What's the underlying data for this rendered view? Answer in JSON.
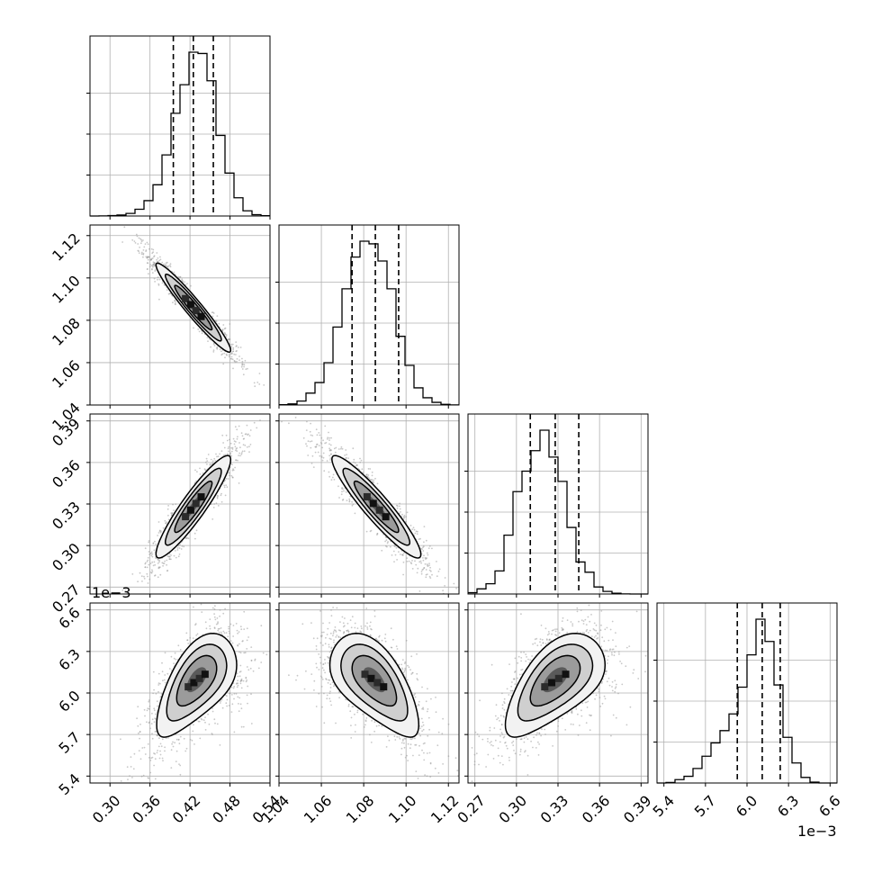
{
  "chart_data": {
    "type": "corner",
    "title": "",
    "parameters": [
      {
        "range": [
          0.27,
          0.54
        ],
        "ticks": [
          "0.30",
          "0.36",
          "0.42",
          "0.48",
          "0.54"
        ],
        "tick_values": [
          0.3,
          0.36,
          0.42,
          0.48,
          0.54
        ],
        "quantiles": [
          0.395,
          0.425,
          0.455
        ],
        "hist_bins": [
          0.27,
          0.54,
          20
        ],
        "hist_counts": [
          0,
          1,
          3,
          8,
          20,
          52,
          118,
          240,
          470,
          790,
          1010,
          1260,
          1250,
          1040,
          620,
          330,
          140,
          40,
          10,
          2
        ]
      },
      {
        "range": [
          1.04,
          1.125
        ],
        "ticks": [
          "1.04",
          "1.06",
          "1.08",
          "1.10",
          "1.12"
        ],
        "tick_values": [
          1.04,
          1.06,
          1.08,
          1.1,
          1.12
        ],
        "quantiles": [
          1.0745,
          1.0855,
          1.0965
        ],
        "hist_bins": [
          1.04,
          1.125,
          20
        ],
        "hist_counts": [
          2,
          8,
          30,
          90,
          170,
          320,
          590,
          880,
          1120,
          1240,
          1220,
          1090,
          880,
          520,
          300,
          130,
          55,
          20,
          5,
          1
        ]
      },
      {
        "range": [
          0.265,
          0.395
        ],
        "ticks": [
          "0.27",
          "0.30",
          "0.33",
          "0.36",
          "0.39"
        ],
        "tick_values": [
          0.27,
          0.3,
          0.33,
          0.36,
          0.39
        ],
        "quantiles": [
          0.31,
          0.328,
          0.345
        ],
        "hist_bins": [
          0.265,
          0.395,
          20
        ],
        "hist_counts": [
          10,
          40,
          80,
          180,
          460,
          800,
          960,
          1120,
          1280,
          1070,
          880,
          520,
          250,
          170,
          55,
          20,
          6,
          1,
          0,
          0
        ]
      },
      {
        "range": [
          5.35,
          6.65
        ],
        "ticks": [
          "5.4",
          "5.7",
          "6.0",
          "6.3",
          "6.6"
        ],
        "tick_values": [
          5.4,
          5.7,
          6.0,
          6.3,
          6.6
        ],
        "quantiles": [
          5.93,
          6.11,
          6.24
        ],
        "hist_bins": [
          5.35,
          6.65,
          20
        ],
        "hist_counts": [
          0,
          5,
          30,
          60,
          130,
          240,
          360,
          470,
          620,
          860,
          1150,
          1470,
          1270,
          880,
          410,
          180,
          50,
          8,
          0,
          0
        ],
        "offset_label": "1e−3"
      }
    ],
    "contours": [
      {
        "x": 0,
        "y": 1,
        "mean": [
          0.425,
          1.086
        ],
        "sd": [
          0.028,
          0.0105
        ],
        "rho": -0.96
      },
      {
        "x": 0,
        "y": 2,
        "mean": [
          0.425,
          0.328
        ],
        "sd": [
          0.028,
          0.0185
        ],
        "rho": 0.92
      },
      {
        "x": 1,
        "y": 2,
        "mean": [
          1.086,
          0.328
        ],
        "sd": [
          0.0105,
          0.0185
        ],
        "rho": -0.93
      },
      {
        "x": 0,
        "y": 3,
        "mean": [
          0.43,
          6.09
        ],
        "sd": [
          0.03,
          0.18
        ],
        "rho": 0.6,
        "curve": -0.12
      },
      {
        "x": 1,
        "y": 3,
        "mean": [
          1.085,
          6.09
        ],
        "sd": [
          0.0105,
          0.18
        ],
        "rho": -0.6,
        "curve": -0.12
      },
      {
        "x": 2,
        "y": 3,
        "mean": [
          0.328,
          6.09
        ],
        "sd": [
          0.018,
          0.18
        ],
        "rho": 0.6,
        "curve": -0.12
      }
    ],
    "x_offset_label": "1e−3",
    "grid": true
  }
}
